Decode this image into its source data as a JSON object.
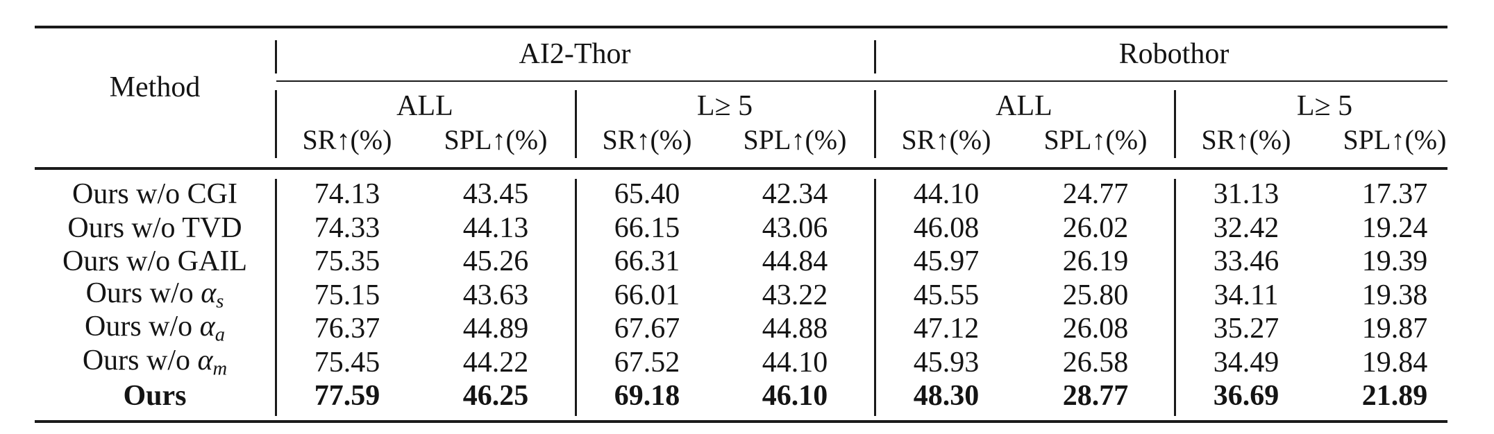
{
  "table": {
    "method_header": "Method",
    "datasets": [
      "AI2-Thor",
      "Robothor"
    ],
    "subsets": [
      "ALL",
      "L≥ 5",
      "ALL",
      "L≥ 5"
    ],
    "metrics": [
      "SR↑(%)",
      "SPL↑(%)",
      "SR↑(%)",
      "SPL↑(%)",
      "SR↑(%)",
      "SPL↑(%)",
      "SR↑(%)",
      "SPL↑(%)"
    ],
    "rows": [
      {
        "prefix": "Ours w/o CGI",
        "alpha_sub": "",
        "bold": false,
        "values": [
          "74.13",
          "43.45",
          "65.40",
          "42.34",
          "44.10",
          "24.77",
          "31.13",
          "17.37"
        ]
      },
      {
        "prefix": "Ours w/o TVD",
        "alpha_sub": "",
        "bold": false,
        "values": [
          "74.33",
          "44.13",
          "66.15",
          "43.06",
          "46.08",
          "26.02",
          "32.42",
          "19.24"
        ]
      },
      {
        "prefix": "Ours w/o GAIL",
        "alpha_sub": "",
        "bold": false,
        "values": [
          "75.35",
          "45.26",
          "66.31",
          "44.84",
          "45.97",
          "26.19",
          "33.46",
          "19.39"
        ]
      },
      {
        "prefix": "Ours w/o ",
        "alpha_sub": "s",
        "bold": false,
        "values": [
          "75.15",
          "43.63",
          "66.01",
          "43.22",
          "45.55",
          "25.80",
          "34.11",
          "19.38"
        ]
      },
      {
        "prefix": "Ours w/o ",
        "alpha_sub": "a",
        "bold": false,
        "values": [
          "76.37",
          "44.89",
          "67.67",
          "44.88",
          "47.12",
          "26.08",
          "35.27",
          "19.87"
        ]
      },
      {
        "prefix": "Ours w/o ",
        "alpha_sub": "m",
        "bold": false,
        "values": [
          "75.45",
          "44.22",
          "67.52",
          "44.10",
          "45.93",
          "26.58",
          "34.49",
          "19.84"
        ]
      },
      {
        "prefix": "Ours",
        "alpha_sub": "",
        "bold": true,
        "values": [
          "77.59",
          "46.25",
          "69.18",
          "46.10",
          "48.30",
          "28.77",
          "36.69",
          "21.89"
        ]
      }
    ]
  }
}
